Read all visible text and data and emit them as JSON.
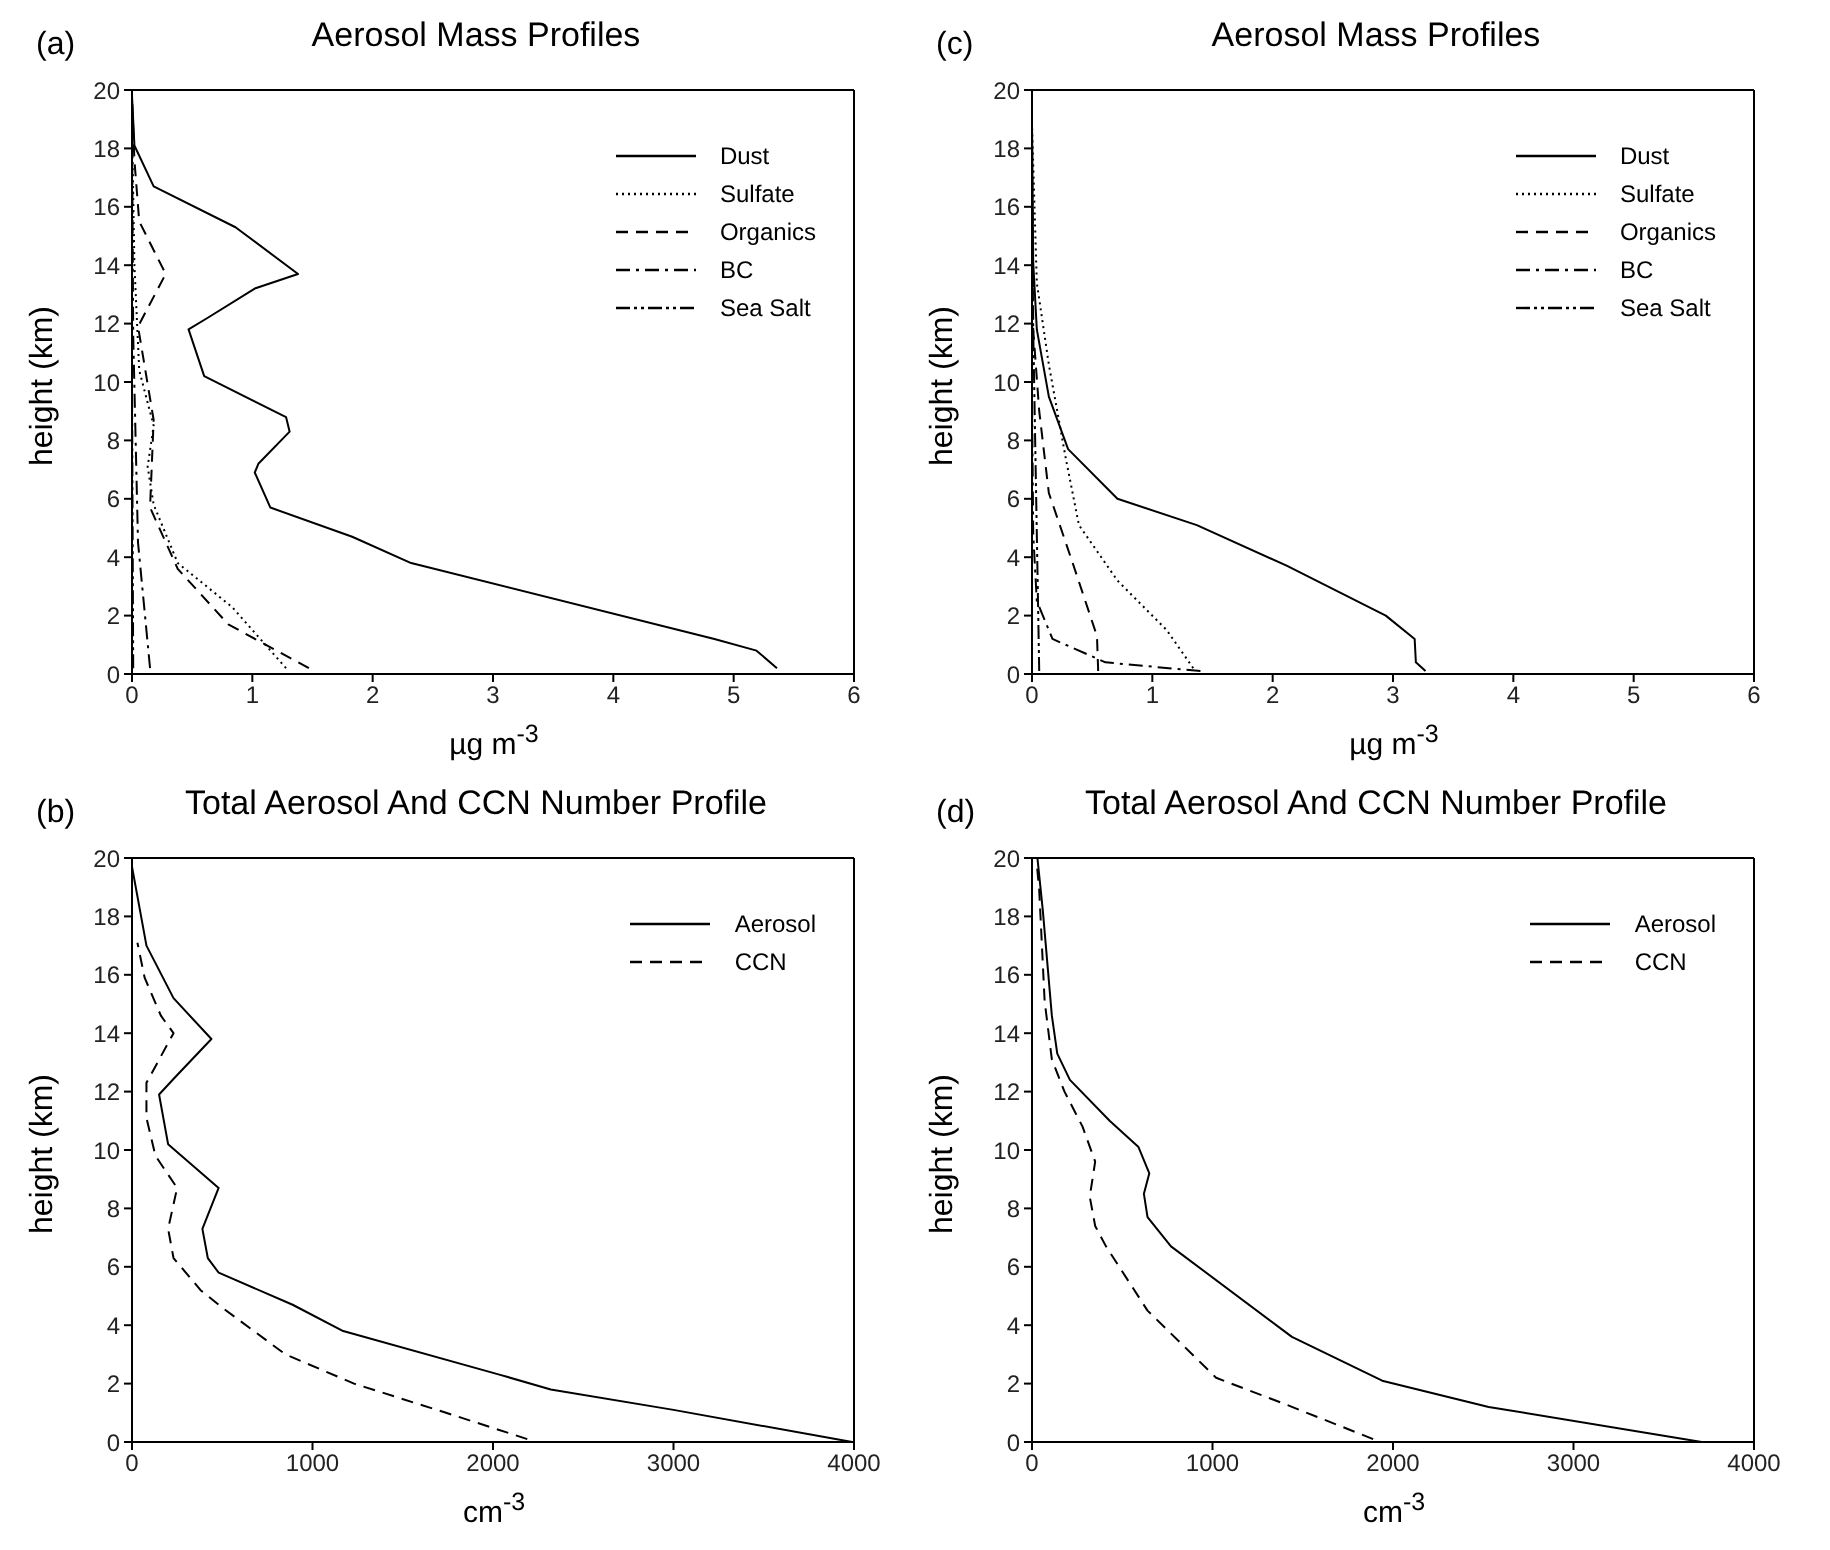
{
  "chart_data": [
    {
      "type": "line",
      "title": "Aerosol Mass Profiles",
      "annotations": [
        "(a)"
      ],
      "xlabel": "µg m$^{-3}$",
      "ylabel": "height (km)",
      "xlim": [
        0,
        6
      ],
      "xticks": [
        0,
        1,
        2,
        3,
        4,
        5,
        6
      ],
      "ylim": [
        0,
        20
      ],
      "yticks": [
        0,
        2,
        4,
        6,
        8,
        10,
        12,
        14,
        16,
        18,
        20
      ],
      "legend": "top right",
      "series": [
        {
          "name": "Dust",
          "color": "#000000",
          "line_style": "solid",
          "x": [
            5.36,
            5.19,
            4.84,
            2.32,
            1.83,
            1.15,
            1.02,
            1.05,
            1.31,
            1.28,
            0.6,
            0.47,
            0.63,
            1.02,
            1.38,
            0.86,
            0.18,
            0.02,
            0
          ],
          "values": [
            0.2,
            0.8,
            1.2,
            3.8,
            4.7,
            5.7,
            6.9,
            7.2,
            8.3,
            8.8,
            10.2,
            11.8,
            12.2,
            13.2,
            13.7,
            15.3,
            16.7,
            18.1,
            19.8
          ]
        },
        {
          "name": "Sulfate",
          "color": "#000000",
          "line_style": "dotted",
          "x": [
            1.28,
            0.83,
            0.38,
            0.18,
            0.13,
            0.18,
            0.06,
            0.02,
            0
          ],
          "values": [
            0.2,
            2.3,
            3.8,
            5.8,
            7.1,
            8.5,
            10.4,
            14,
            18.8
          ]
        },
        {
          "name": "Organics",
          "color": "#000000",
          "line_style": "dashed",
          "x": [
            1.47,
            0.8,
            0.38,
            0.15,
            0.18,
            0.05,
            0.28,
            0.06,
            0.02,
            0
          ],
          "values": [
            0.2,
            1.7,
            3.6,
            5.7,
            8.7,
            11.9,
            13.7,
            15.5,
            17.6,
            19.8
          ]
        },
        {
          "name": "BC",
          "color": "#000000",
          "line_style": "dashdot",
          "x": [
            0.15,
            0.05,
            0.01,
            0
          ],
          "values": [
            0.2,
            4.5,
            11.6,
            18.8
          ]
        },
        {
          "name": "Sea Salt",
          "color": "#000000",
          "line_style": "dashdotdot",
          "x": [
            0.01,
            0,
            0
          ],
          "values": [
            0.2,
            10,
            19.8
          ]
        }
      ]
    },
    {
      "type": "line",
      "title": "Aerosol Mass Profiles",
      "annotations": [
        "(c)"
      ],
      "xlabel": "µg m$^{-3}$",
      "ylabel": "height (km)",
      "xlim": [
        0,
        6
      ],
      "xticks": [
        0,
        1,
        2,
        3,
        4,
        5,
        6
      ],
      "ylim": [
        0,
        20
      ],
      "yticks": [
        0,
        2,
        4,
        6,
        8,
        10,
        12,
        14,
        16,
        18,
        20
      ],
      "legend": "top right",
      "series": [
        {
          "name": "Dust",
          "color": "#000000",
          "line_style": "solid",
          "x": [
            3.27,
            3.19,
            3.18,
            2.94,
            2.12,
            1.37,
            0.71,
            0.3,
            0.14,
            0.04,
            0.01,
            0
          ],
          "values": [
            0.1,
            0.4,
            1.2,
            2.0,
            3.7,
            5.1,
            6.0,
            7.7,
            9.5,
            11.8,
            14.1,
            18.8
          ]
        },
        {
          "name": "Sulfate",
          "color": "#000000",
          "line_style": "dotted",
          "x": [
            1.34,
            1.12,
            0.71,
            0.39,
            0.28,
            0.14,
            0.04,
            0
          ],
          "values": [
            0.2,
            1.5,
            3.2,
            5.1,
            7.4,
            10.6,
            13.4,
            18.8
          ]
        },
        {
          "name": "Organics",
          "color": "#000000",
          "line_style": "dashed",
          "x": [
            0.55,
            0.54,
            0.33,
            0.14,
            0.06,
            0.01,
            0
          ],
          "values": [
            0.1,
            1.3,
            3.9,
            6.2,
            9.0,
            11.8,
            16.4
          ]
        },
        {
          "name": "BC",
          "color": "#000000",
          "line_style": "dashdot",
          "x": [
            1.4,
            0.61,
            0.17,
            0.04,
            0.01,
            0
          ],
          "values": [
            0.1,
            0.4,
            1.2,
            2.5,
            4.8,
            9.5
          ]
        },
        {
          "name": "Sea Salt",
          "color": "#000000",
          "line_style": "dashdotdot",
          "x": [
            0.06,
            0.04,
            0.01,
            0
          ],
          "values": [
            0.1,
            4.8,
            11.8,
            18.8
          ]
        }
      ]
    },
    {
      "type": "line",
      "title": "Total Aerosol And CCN Number Profile",
      "annotations": [
        "(b)"
      ],
      "xlabel": "cm$^{-3}$",
      "ylabel": "height (km)",
      "xlim": [
        0,
        4000
      ],
      "xticks": [
        0,
        1000,
        2000,
        3000,
        4000
      ],
      "ylim": [
        0,
        20
      ],
      "yticks": [
        0,
        2,
        4,
        6,
        8,
        10,
        12,
        14,
        16,
        18,
        20
      ],
      "legend": "top right",
      "series": [
        {
          "name": "Aerosol",
          "color": "#000000",
          "line_style": "solid",
          "x": [
            3990,
            3000,
            2320,
            2040,
            1170,
            890,
            480,
            420,
            390,
            480,
            200,
            150,
            240,
            440,
            230,
            80,
            0
          ],
          "values": [
            0,
            1.1,
            1.8,
            2.3,
            3.8,
            4.7,
            5.8,
            6.3,
            7.3,
            8.7,
            10.2,
            11.9,
            12.5,
            13.8,
            15.2,
            17.0,
            19.7
          ]
        },
        {
          "name": "CCN",
          "color": "#000000",
          "line_style": "dashed",
          "x": [
            2190,
            1740,
            1230,
            850,
            500,
            380,
            230,
            200,
            250,
            130,
            80,
            80,
            230,
            160,
            70,
            30
          ],
          "values": [
            0.1,
            1.0,
            2.0,
            3.0,
            4.6,
            5.2,
            6.3,
            7.3,
            8.7,
            9.8,
            11.1,
            12.3,
            14.0,
            14.6,
            15.9,
            17.1
          ]
        }
      ]
    },
    {
      "type": "line",
      "title": "Total Aerosol And CCN Number Profile",
      "annotations": [
        "(d)"
      ],
      "xlabel": "cm$^{-3}$",
      "ylabel": "height (km)",
      "xlim": [
        0,
        4000
      ],
      "xticks": [
        0,
        1000,
        2000,
        3000,
        4000
      ],
      "ylim": [
        0,
        20
      ],
      "yticks": [
        0,
        2,
        4,
        6,
        8,
        10,
        12,
        14,
        16,
        18,
        20
      ],
      "legend": "top right",
      "series": [
        {
          "name": "Aerosol",
          "color": "#000000",
          "line_style": "solid",
          "x": [
            3710,
            2530,
            1940,
            1440,
            770,
            640,
            620,
            650,
            590,
            430,
            210,
            140,
            110,
            60,
            30
          ],
          "values": [
            0,
            1.2,
            2.1,
            3.6,
            6.7,
            7.7,
            8.5,
            9.2,
            10.1,
            11.0,
            12.4,
            13.3,
            14.6,
            18.2,
            20
          ]
        },
        {
          "name": "CCN",
          "color": "#000000",
          "line_style": "dashed",
          "x": [
            1890,
            1400,
            1020,
            640,
            410,
            350,
            320,
            350,
            280,
            180,
            110,
            70,
            40,
            25
          ],
          "values": [
            0.1,
            1.3,
            2.2,
            4.5,
            6.7,
            7.4,
            8.4,
            9.6,
            10.8,
            12.0,
            13.1,
            15.1,
            18.9,
            19.9
          ]
        }
      ]
    }
  ]
}
